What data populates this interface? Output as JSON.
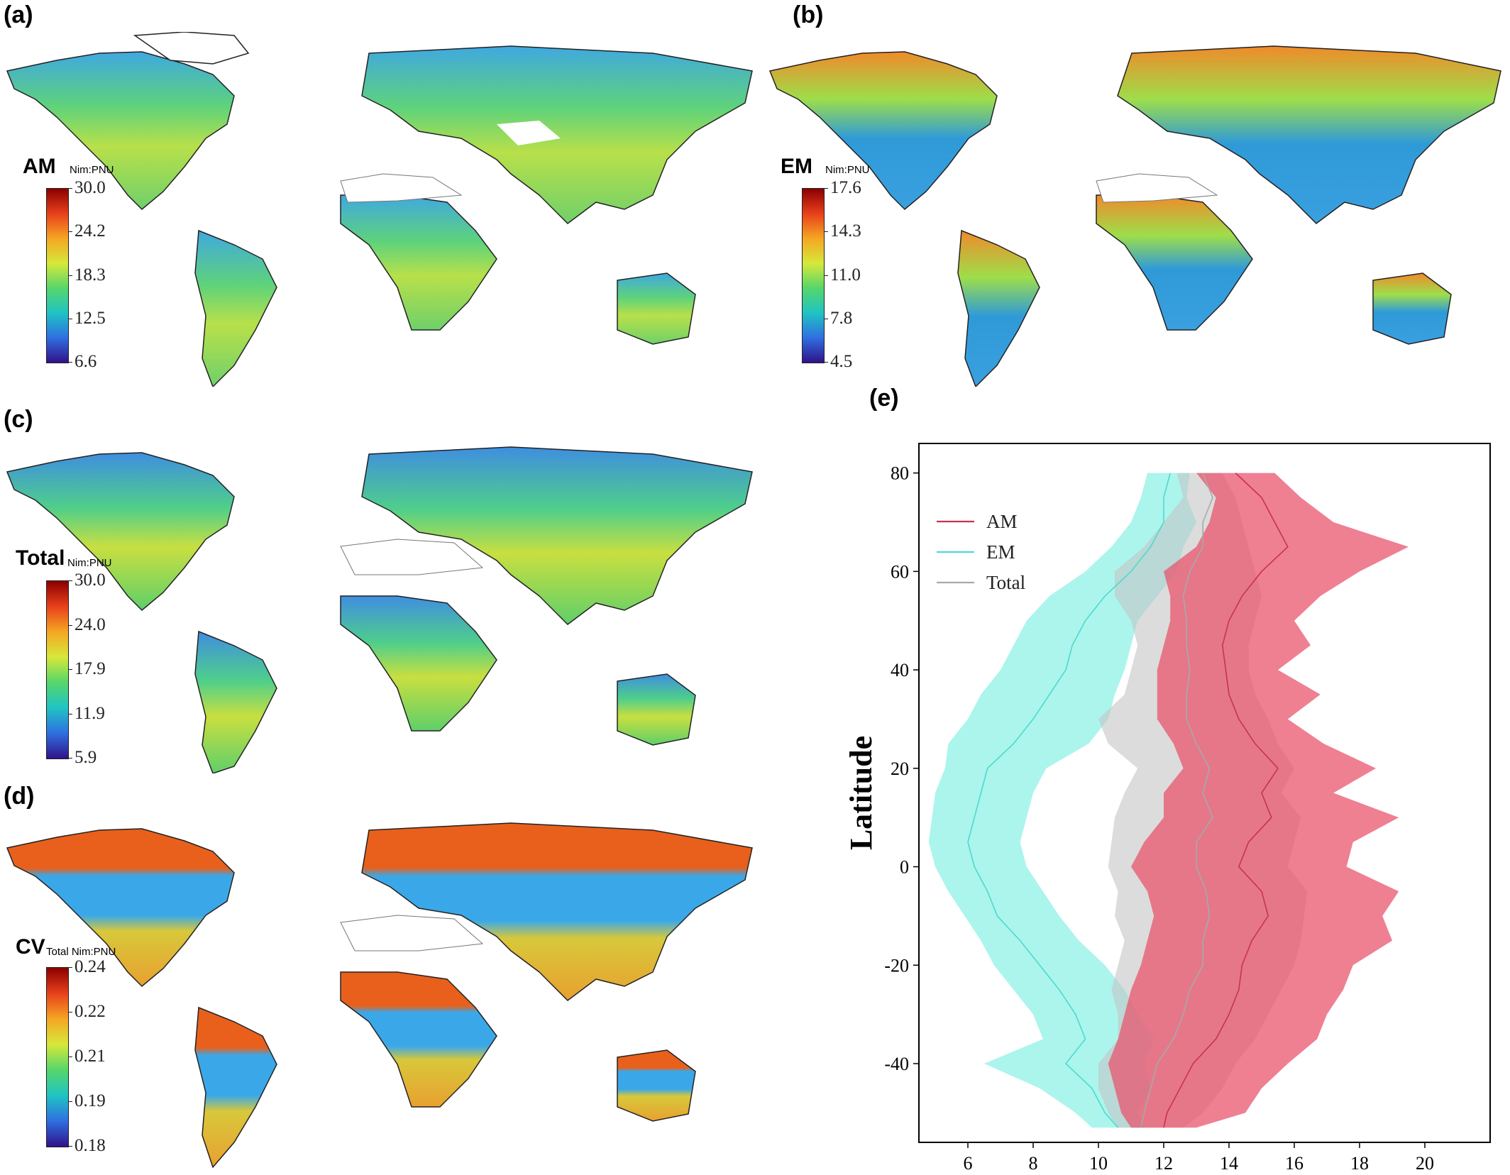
{
  "panels": {
    "a": {
      "letter": "(a)",
      "colorbar": {
        "title": "AM",
        "unit": "Nim:PNU",
        "ticks": [
          "30.0",
          "24.2",
          "18.3",
          "12.5",
          "6.6"
        ],
        "colors": [
          "#8b0000",
          "#e8401c",
          "#f5a623",
          "#d6e83a",
          "#57d66a",
          "#1fc4c4",
          "#2f6fe0",
          "#30128a"
        ]
      }
    },
    "b": {
      "letter": "(b)",
      "colorbar": {
        "title": "EM",
        "unit": "Nim:PNU",
        "ticks": [
          "17.6",
          "14.3",
          "11.0",
          "7.8",
          "4.5"
        ],
        "colors": [
          "#8b0000",
          "#e8401c",
          "#f5a623",
          "#d6e83a",
          "#57d66a",
          "#1fc4c4",
          "#2f6fe0",
          "#30128a"
        ]
      }
    },
    "c": {
      "letter": "(c)",
      "colorbar": {
        "title": "Total",
        "unit": "Nim:PNU",
        "ticks": [
          "30.0",
          "24.0",
          "17.9",
          "11.9",
          "5.9"
        ],
        "colors": [
          "#8b0000",
          "#e8401c",
          "#f5a623",
          "#d6e83a",
          "#57d66a",
          "#1fc4c4",
          "#2f6fe0",
          "#30128a"
        ]
      }
    },
    "d": {
      "letter": "(d)",
      "colorbar": {
        "title": "CV",
        "unit": "Total Nim:PNU",
        "ticks": [
          "0.24",
          "0.22",
          "0.21",
          "0.19",
          "0.18"
        ],
        "colors": [
          "#8b0000",
          "#e8401c",
          "#f5a623",
          "#d6e83a",
          "#57d66a",
          "#1fc4c4",
          "#2f6fe0",
          "#30128a"
        ]
      }
    },
    "e": {
      "letter": "(e)"
    }
  },
  "chart_data": {
    "type": "line",
    "orientation": "x-value-vs-latitude",
    "xlabel": "",
    "ylabel": "Latitude",
    "xlim": [
      4.5,
      22
    ],
    "ylim": [
      -56,
      86
    ],
    "xticks": [
      6,
      8,
      10,
      12,
      14,
      16,
      18,
      20
    ],
    "yticks": [
      -40,
      -20,
      0,
      20,
      40,
      60,
      80
    ],
    "legend": "upper-left",
    "latitudes": [
      80,
      75,
      70,
      65,
      60,
      55,
      50,
      45,
      40,
      35,
      30,
      25,
      20,
      15,
      10,
      5,
      0,
      -5,
      -10,
      -15,
      -20,
      -25,
      -30,
      -35,
      -40,
      -45,
      -50,
      -53
    ],
    "series": [
      {
        "name": "AM",
        "color": "#c8334f",
        "fill": "#e8566e",
        "mean": [
          14.2,
          15.0,
          15.4,
          15.8,
          15.0,
          14.4,
          14.0,
          13.8,
          13.9,
          14.0,
          14.3,
          14.8,
          15.5,
          15.0,
          15.3,
          14.6,
          14.3,
          15.0,
          15.2,
          14.7,
          14.4,
          14.3,
          14.0,
          13.6,
          12.9,
          12.5,
          12.1,
          12.0
        ],
        "lower": [
          13.0,
          13.6,
          13.4,
          13.0,
          12.0,
          12.2,
          12.2,
          12.0,
          11.8,
          11.8,
          11.8,
          12.3,
          12.6,
          12.0,
          12.0,
          11.4,
          11.0,
          11.5,
          11.7,
          11.5,
          11.3,
          11.0,
          10.8,
          10.6,
          10.3,
          10.5,
          10.7,
          11.0
        ],
        "upper": [
          15.4,
          16.2,
          17.2,
          19.5,
          18.0,
          16.8,
          16.0,
          16.5,
          15.5,
          16.8,
          15.8,
          16.9,
          18.5,
          17.2,
          19.2,
          17.8,
          17.6,
          19.2,
          18.7,
          19.0,
          17.8,
          17.5,
          17.0,
          16.7,
          15.8,
          15.0,
          14.5,
          13.0
        ]
      },
      {
        "name": "EM",
        "color": "#4fd9cf",
        "fill": "#7ef0e4",
        "mean": [
          12.2,
          12.0,
          12.0,
          11.6,
          11.0,
          10.2,
          9.6,
          9.2,
          9.0,
          8.5,
          8.0,
          7.4,
          6.6,
          6.4,
          6.2,
          6.0,
          6.2,
          6.6,
          6.9,
          7.6,
          8.2,
          8.8,
          9.3,
          9.6,
          9.0,
          9.8,
          10.2,
          10.6
        ],
        "lower": [
          11.5,
          11.3,
          11.0,
          10.4,
          9.6,
          8.5,
          7.8,
          7.4,
          7.0,
          6.4,
          6.0,
          5.4,
          5.3,
          5.0,
          4.9,
          4.8,
          5.0,
          5.4,
          5.9,
          6.4,
          6.8,
          7.4,
          8.0,
          8.3,
          6.5,
          8.2,
          9.3,
          9.8
        ],
        "upper": [
          12.8,
          12.7,
          13.0,
          12.6,
          12.4,
          11.8,
          11.2,
          11.0,
          10.8,
          10.5,
          10.3,
          9.7,
          8.4,
          8.0,
          7.8,
          7.6,
          7.8,
          8.3,
          8.8,
          9.4,
          10.2,
          10.8,
          11.2,
          11.7,
          11.4,
          11.6,
          11.2,
          11.4
        ]
      },
      {
        "name": "Total",
        "color": "#a9a9a9",
        "fill": "#c4c4c4",
        "mean": [
          13.2,
          13.5,
          13.2,
          13.2,
          12.8,
          12.6,
          12.7,
          12.7,
          12.8,
          12.7,
          12.7,
          13.0,
          13.4,
          13.2,
          13.5,
          13.0,
          13.0,
          13.3,
          13.4,
          13.2,
          13.2,
          12.8,
          12.6,
          12.3,
          11.8,
          11.6,
          11.4,
          11.3
        ],
        "lower": [
          12.4,
          12.6,
          12.0,
          11.4,
          10.5,
          10.5,
          11.0,
          11.2,
          11.0,
          10.8,
          10.0,
          10.3,
          11.2,
          10.8,
          10.5,
          10.4,
          10.3,
          10.6,
          10.5,
          10.8,
          10.6,
          10.4,
          10.6,
          10.6,
          10.0,
          10.0,
          10.3,
          10.6
        ],
        "upper": [
          13.8,
          14.2,
          14.4,
          14.6,
          14.8,
          15.0,
          14.8,
          14.6,
          14.6,
          14.8,
          15.2,
          15.5,
          16.0,
          15.6,
          16.2,
          16.0,
          15.8,
          16.4,
          16.3,
          16.2,
          16.0,
          15.6,
          15.2,
          14.8,
          14.2,
          13.8,
          13.2,
          12.6
        ]
      }
    ]
  }
}
